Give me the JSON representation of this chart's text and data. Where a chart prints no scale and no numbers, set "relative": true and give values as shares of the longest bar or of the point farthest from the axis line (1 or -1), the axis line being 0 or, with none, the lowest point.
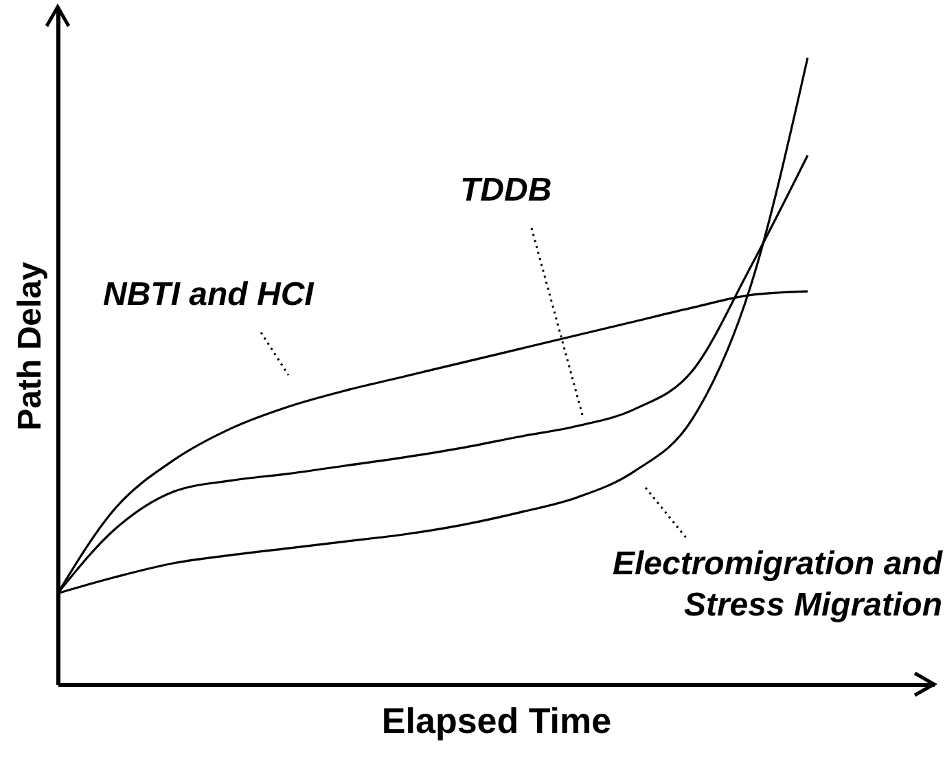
{
  "chart_data": {
    "type": "line",
    "relative": true,
    "xlabel": "Elapsed Time",
    "ylabel": "Path Delay",
    "categories": [
      null,
      null,
      null,
      null,
      null,
      null,
      null,
      null,
      null,
      null,
      null,
      null,
      null,
      null
    ],
    "series": [
      {
        "color": "#000000",
        "values": [
          0.145,
          0.281,
          0.357,
          0.408,
          0.443,
          0.469,
          0.491,
          0.513,
          0.535,
          0.557,
          0.579,
          0.601,
          0.621,
          0.627
        ]
      },
      {
        "color": "#000000",
        "values": [
          0.145,
          0.248,
          0.307,
          0.325,
          0.336,
          0.349,
          0.362,
          0.377,
          0.395,
          0.412,
          0.439,
          0.5,
          0.664,
          0.844
        ]
      },
      {
        "color": "#000000",
        "values": [
          0.145,
          0.171,
          0.193,
          0.206,
          0.217,
          0.228,
          0.239,
          0.254,
          0.274,
          0.298,
          0.34,
          0.423,
          0.632,
          1
        ]
      }
    ],
    "annotations": [
      "NBTI and HCI",
      "TDDB",
      "Electromigration and Stress Migration"
    ],
    "grid": false,
    "marker": "none",
    "line_style": "solid"
  }
}
